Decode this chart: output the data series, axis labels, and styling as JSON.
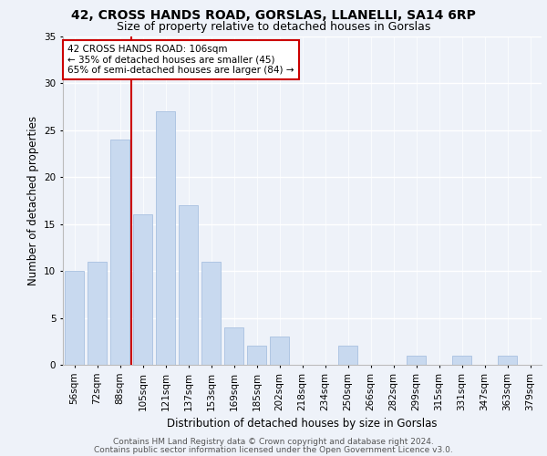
{
  "title1": "42, CROSS HANDS ROAD, GORSLAS, LLANELLI, SA14 6RP",
  "title2": "Size of property relative to detached houses in Gorslas",
  "xlabel": "Distribution of detached houses by size in Gorslas",
  "ylabel": "Number of detached properties",
  "categories": [
    "56sqm",
    "72sqm",
    "88sqm",
    "105sqm",
    "121sqm",
    "137sqm",
    "153sqm",
    "169sqm",
    "185sqm",
    "202sqm",
    "218sqm",
    "234sqm",
    "250sqm",
    "266sqm",
    "282sqm",
    "299sqm",
    "315sqm",
    "331sqm",
    "347sqm",
    "363sqm",
    "379sqm"
  ],
  "values": [
    10,
    11,
    24,
    16,
    27,
    17,
    11,
    4,
    2,
    3,
    0,
    0,
    2,
    0,
    0,
    1,
    0,
    1,
    0,
    1,
    0
  ],
  "bar_color": "#c8d9ef",
  "bar_edge_color": "#a8c0e0",
  "vline_color": "#cc0000",
  "vline_x_index": 3,
  "annotation_text": "42 CROSS HANDS ROAD: 106sqm\n← 35% of detached houses are smaller (45)\n65% of semi-detached houses are larger (84) →",
  "annotation_box_facecolor": "#ffffff",
  "annotation_box_edgecolor": "#cc0000",
  "ylim": [
    0,
    35
  ],
  "yticks": [
    0,
    5,
    10,
    15,
    20,
    25,
    30,
    35
  ],
  "footer1": "Contains HM Land Registry data © Crown copyright and database right 2024.",
  "footer2": "Contains public sector information licensed under the Open Government Licence v3.0.",
  "bg_color": "#eef2f9",
  "plot_bg_color": "#eef2f9",
  "grid_color": "#ffffff",
  "title1_fontsize": 10,
  "title2_fontsize": 9,
  "footer_fontsize": 6.5,
  "axis_label_fontsize": 8.5,
  "tick_fontsize": 7.5,
  "annotation_fontsize": 7.5
}
